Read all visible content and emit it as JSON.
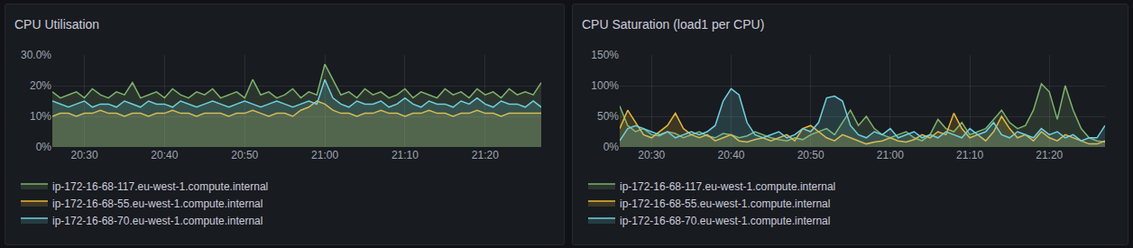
{
  "chart_data": [
    {
      "type": "area",
      "title": "CPU Utilisation",
      "categories": [
        null,
        null,
        null,
        null,
        "20:30",
        null,
        null,
        null,
        null,
        null,
        null,
        null,
        null,
        null,
        "20:40",
        null,
        null,
        null,
        null,
        null,
        null,
        null,
        null,
        null,
        "20:50",
        null,
        null,
        null,
        null,
        null,
        null,
        null,
        null,
        null,
        "21:00",
        null,
        null,
        null,
        null,
        null,
        null,
        null,
        null,
        null,
        "21:10",
        null,
        null,
        null,
        null,
        null,
        null,
        null,
        null,
        null,
        "21:20",
        null,
        null,
        null,
        null,
        null,
        null,
        null
      ],
      "series": [
        {
          "name": "ip-172-16-68-117.eu-west-1.compute.internal",
          "color": "#7EB26D",
          "values": [
            18,
            16,
            17,
            18,
            16,
            19,
            17,
            16,
            18,
            17,
            21,
            16,
            17,
            18,
            16,
            19,
            17,
            16,
            18,
            17,
            19,
            16,
            17,
            18,
            16,
            22,
            17,
            18,
            16,
            17,
            19,
            16,
            18,
            17,
            27,
            22,
            17,
            18,
            16,
            19,
            17,
            18,
            16,
            17,
            19,
            16,
            18,
            17,
            16,
            19,
            17,
            18,
            16,
            19,
            17,
            18,
            16,
            19,
            17,
            18,
            17,
            21
          ]
        },
        {
          "name": "ip-172-16-68-55.eu-west-1.compute.internal",
          "color": "#EAB839",
          "values": [
            10,
            11,
            11,
            10,
            11,
            11,
            12,
            11,
            11,
            10,
            11,
            11,
            10,
            11,
            11,
            12,
            11,
            11,
            10,
            11,
            11,
            11,
            10,
            11,
            11,
            12,
            11,
            10,
            11,
            11,
            10,
            12,
            13,
            15,
            14,
            12,
            11,
            11,
            10,
            11,
            11,
            12,
            11,
            11,
            10,
            11,
            11,
            12,
            11,
            11,
            10,
            11,
            11,
            12,
            11,
            11,
            10,
            11,
            11,
            11,
            11,
            11
          ]
        },
        {
          "name": "ip-172-16-68-70.eu-west-1.compute.internal",
          "color": "#6ED0E0",
          "values": [
            15,
            14,
            13,
            14,
            15,
            13,
            14,
            14,
            13,
            15,
            14,
            13,
            15,
            14,
            14,
            13,
            15,
            14,
            13,
            14,
            15,
            14,
            13,
            14,
            15,
            14,
            13,
            14,
            15,
            14,
            13,
            14,
            15,
            14,
            22,
            16,
            14,
            13,
            15,
            14,
            14,
            15,
            13,
            14,
            16,
            14,
            13,
            15,
            14,
            14,
            13,
            15,
            14,
            16,
            14,
            13,
            15,
            14,
            14,
            13,
            15,
            13
          ]
        }
      ],
      "ylim": [
        0,
        30
      ],
      "yticks": [
        {
          "value": 0,
          "label": "0%"
        },
        {
          "value": 10,
          "label": "10%"
        },
        {
          "value": 20,
          "label": "20%"
        },
        {
          "value": 30,
          "label": "30.0%"
        }
      ],
      "grid": true,
      "legend": "bottom"
    },
    {
      "type": "area",
      "title": "CPU Saturation (load1 per CPU)",
      "categories": [
        null,
        null,
        null,
        null,
        "20:30",
        null,
        null,
        null,
        null,
        null,
        null,
        null,
        null,
        null,
        "20:40",
        null,
        null,
        null,
        null,
        null,
        null,
        null,
        null,
        null,
        "20:50",
        null,
        null,
        null,
        null,
        null,
        null,
        null,
        null,
        null,
        "21:00",
        null,
        null,
        null,
        null,
        null,
        null,
        null,
        null,
        null,
        "21:10",
        null,
        null,
        null,
        null,
        null,
        null,
        null,
        null,
        null,
        "21:20",
        null,
        null,
        null,
        null,
        null,
        null,
        null
      ],
      "series": [
        {
          "name": "ip-172-16-68-117.eu-west-1.compute.internal",
          "color": "#7EB26D",
          "values": [
            67,
            35,
            25,
            30,
            20,
            18,
            25,
            22,
            15,
            20,
            25,
            18,
            15,
            22,
            20,
            15,
            18,
            25,
            20,
            15,
            12,
            10,
            15,
            12,
            20,
            25,
            30,
            20,
            40,
            60,
            35,
            50,
            30,
            20,
            15,
            20,
            25,
            15,
            10,
            20,
            45,
            30,
            25,
            40,
            20,
            25,
            30,
            45,
            60,
            40,
            30,
            35,
            60,
            103,
            90,
            45,
            100,
            60,
            30,
            15,
            10,
            8
          ]
        },
        {
          "name": "ip-172-16-68-55.eu-west-1.compute.internal",
          "color": "#EAB839",
          "values": [
            30,
            60,
            40,
            20,
            15,
            25,
            35,
            55,
            30,
            20,
            15,
            20,
            10,
            15,
            20,
            10,
            8,
            12,
            15,
            10,
            15,
            20,
            10,
            30,
            35,
            25,
            15,
            10,
            20,
            15,
            10,
            5,
            8,
            10,
            15,
            10,
            8,
            12,
            20,
            15,
            25,
            20,
            55,
            30,
            15,
            20,
            10,
            25,
            50,
            30,
            15,
            20,
            10,
            25,
            15,
            10,
            20,
            15,
            10,
            5,
            5,
            10
          ]
        },
        {
          "name": "ip-172-16-68-70.eu-west-1.compute.internal",
          "color": "#6ED0E0",
          "values": [
            10,
            30,
            35,
            30,
            25,
            20,
            25,
            15,
            20,
            25,
            20,
            25,
            35,
            75,
            95,
            85,
            40,
            20,
            15,
            20,
            25,
            15,
            20,
            30,
            25,
            40,
            80,
            83,
            75,
            35,
            20,
            15,
            25,
            20,
            30,
            15,
            20,
            25,
            15,
            20,
            15,
            25,
            20,
            15,
            30,
            20,
            25,
            40,
            20,
            15,
            25,
            20,
            15,
            30,
            20,
            25,
            15,
            20,
            10,
            15,
            15,
            35
          ]
        }
      ],
      "ylim": [
        0,
        150
      ],
      "yticks": [
        {
          "value": 0,
          "label": "0%"
        },
        {
          "value": 50,
          "label": "50%"
        },
        {
          "value": 100,
          "label": "100%"
        },
        {
          "value": 150,
          "label": "150%"
        }
      ],
      "grid": true,
      "legend": "bottom"
    }
  ]
}
